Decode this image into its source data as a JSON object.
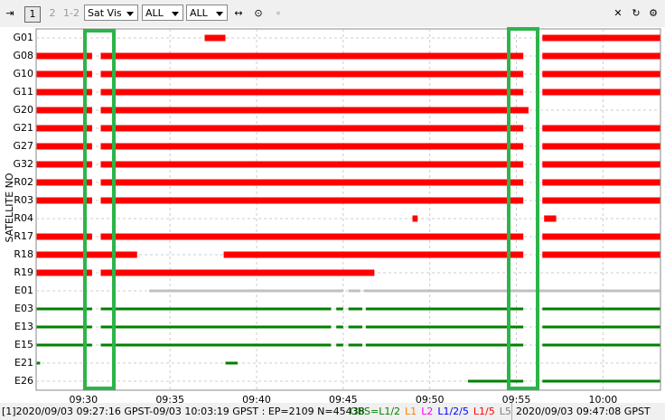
{
  "toolbar": {
    "plot1": "1",
    "plot2": "2",
    "plot12": "1-2",
    "plot_type": "Sat Vis",
    "sat_filter": "ALL",
    "obs_filter": "ALL"
  },
  "chart_data": {
    "type": "timeline",
    "ylabel": "SATELLITE NO",
    "xlim": [
      27.27,
      63.32
    ],
    "xticks": [
      {
        "value": 30,
        "label": "09:30"
      },
      {
        "value": 35,
        "label": "09:35"
      },
      {
        "value": 40,
        "label": "09:40"
      },
      {
        "value": 45,
        "label": "09:45"
      },
      {
        "value": 50,
        "label": "09:50"
      },
      {
        "value": 55,
        "label": "09:55"
      },
      {
        "value": 60,
        "label": "10:00"
      }
    ],
    "grid": true,
    "series": [
      {
        "name": "G01",
        "color": "#ff0000",
        "segments": [
          [
            37.0,
            38.2
          ],
          [
            56.5,
            63.3
          ]
        ]
      },
      {
        "name": "G08",
        "color": "#ff0000",
        "segments": [
          [
            27.3,
            30.5
          ],
          [
            31.0,
            55.4
          ],
          [
            56.5,
            63.3
          ]
        ]
      },
      {
        "name": "G10",
        "color": "#ff0000",
        "segments": [
          [
            27.3,
            30.5
          ],
          [
            31.0,
            55.4
          ],
          [
            56.5,
            63.3
          ]
        ]
      },
      {
        "name": "G11",
        "color": "#ff0000",
        "segments": [
          [
            27.3,
            30.5
          ],
          [
            31.0,
            55.4
          ],
          [
            56.5,
            63.3
          ]
        ]
      },
      {
        "name": "G20",
        "color": "#ff0000",
        "segments": [
          [
            27.3,
            30.5
          ],
          [
            31.0,
            55.7
          ]
        ]
      },
      {
        "name": "G21",
        "color": "#ff0000",
        "segments": [
          [
            27.3,
            30.5
          ],
          [
            31.0,
            55.4
          ],
          [
            56.5,
            63.3
          ]
        ]
      },
      {
        "name": "G27",
        "color": "#ff0000",
        "segments": [
          [
            27.3,
            30.5
          ],
          [
            31.0,
            55.4
          ],
          [
            56.5,
            63.3
          ]
        ]
      },
      {
        "name": "G32",
        "color": "#ff0000",
        "segments": [
          [
            27.3,
            30.5
          ],
          [
            31.0,
            55.4
          ],
          [
            56.5,
            63.3
          ]
        ]
      },
      {
        "name": "R02",
        "color": "#ff0000",
        "segments": [
          [
            27.3,
            30.5
          ],
          [
            31.0,
            55.4
          ],
          [
            56.5,
            63.3
          ]
        ]
      },
      {
        "name": "R03",
        "color": "#ff0000",
        "segments": [
          [
            27.3,
            30.5
          ],
          [
            31.0,
            55.4
          ],
          [
            56.5,
            63.3
          ]
        ]
      },
      {
        "name": "R04",
        "color": "#ff0000",
        "segments": [
          [
            49.0,
            49.3
          ],
          [
            56.6,
            57.3
          ]
        ]
      },
      {
        "name": "R17",
        "color": "#ff0000",
        "segments": [
          [
            27.3,
            30.5
          ],
          [
            31.0,
            55.4
          ],
          [
            56.5,
            63.3
          ]
        ]
      },
      {
        "name": "R18",
        "color": "#ff0000",
        "segments": [
          [
            27.3,
            33.1
          ],
          [
            38.1,
            55.4
          ],
          [
            56.5,
            63.3
          ]
        ]
      },
      {
        "name": "R19",
        "color": "#ff0000",
        "segments": [
          [
            27.3,
            30.5
          ],
          [
            31.0,
            46.8
          ]
        ]
      },
      {
        "name": "E01",
        "color": "#c0c0c0",
        "segments": [
          [
            33.8,
            45.0
          ],
          [
            45.3,
            46.0
          ],
          [
            46.2,
            63.3
          ]
        ]
      },
      {
        "name": "E03",
        "color": "#008000",
        "segments": [
          [
            27.3,
            30.5
          ],
          [
            31.0,
            44.3
          ],
          [
            44.6,
            45.0
          ],
          [
            45.3,
            46.1
          ],
          [
            46.3,
            55.4
          ],
          [
            56.5,
            63.3
          ]
        ]
      },
      {
        "name": "E13",
        "color": "#008000",
        "segments": [
          [
            27.3,
            30.5
          ],
          [
            31.0,
            44.3
          ],
          [
            44.6,
            45.0
          ],
          [
            45.3,
            46.1
          ],
          [
            46.3,
            55.4
          ],
          [
            56.5,
            63.3
          ]
        ]
      },
      {
        "name": "E15",
        "color": "#008000",
        "segments": [
          [
            27.3,
            30.5
          ],
          [
            31.0,
            44.3
          ],
          [
            44.6,
            45.0
          ],
          [
            45.3,
            46.1
          ],
          [
            46.3,
            55.4
          ],
          [
            56.5,
            63.3
          ]
        ]
      },
      {
        "name": "E21",
        "color": "#008000",
        "segments": [
          [
            27.3,
            27.5
          ],
          [
            38.2,
            38.9
          ]
        ]
      },
      {
        "name": "E26",
        "color": "#008000",
        "segments": [
          [
            52.2,
            55.4
          ],
          [
            56.5,
            63.3
          ]
        ]
      }
    ]
  },
  "status": {
    "range": "[1]2020/09/03 09:27:16 GPST-09/03 10:03:19 GPST : EP=2109 N=45438",
    "legend": [
      {
        "label": "OBS=L1/2",
        "color": "#008000"
      },
      {
        "label": "L1",
        "color": "#ff8000"
      },
      {
        "label": "L2",
        "color": "#ff00ff"
      },
      {
        "label": "L1/2/5",
        "color": "#0000ff"
      },
      {
        "label": "L1/5",
        "color": "#ff0000"
      },
      {
        "label": "L5",
        "color": "#808080"
      }
    ],
    "time": "2020/09/03 09:47:08 GPST"
  }
}
